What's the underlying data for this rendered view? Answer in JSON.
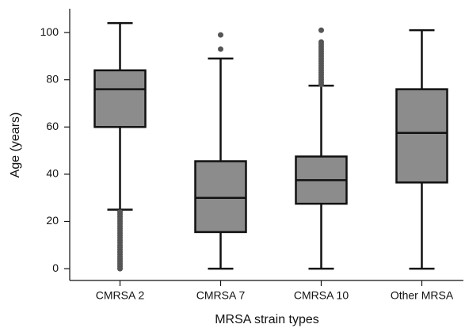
{
  "chart_data": {
    "type": "box",
    "x_label": "MRSA strain types",
    "y_label": "Age (years)",
    "categories": [
      "CMRSA 2",
      "CMRSA 7",
      "CMRSA 10",
      "Other MRSA"
    ],
    "color": "#8c8c8c",
    "boxes": [
      {
        "whislo": 25,
        "q1": 60,
        "med": 76,
        "q3": 84,
        "whishi": 104,
        "fliers": [
          0,
          1,
          2,
          3,
          4,
          5,
          6,
          7,
          8,
          9,
          10,
          11,
          12,
          13,
          14,
          15,
          16,
          17,
          18,
          19,
          20,
          21,
          22,
          23,
          24
        ]
      },
      {
        "whislo": 0,
        "q1": 15.5,
        "med": 30,
        "q3": 45.5,
        "whishi": 89,
        "fliers": [
          93,
          99
        ]
      },
      {
        "whislo": 0,
        "q1": 27.5,
        "med": 37.5,
        "q3": 47.5,
        "whishi": 77.5,
        "fliers": [
          78,
          79,
          80,
          81,
          82,
          83,
          84,
          85,
          86,
          87,
          88,
          89,
          90,
          91,
          92,
          93,
          94,
          95,
          96,
          101
        ]
      },
      {
        "whislo": 0,
        "q1": 36.5,
        "med": 57.5,
        "q3": 76,
        "whishi": 101,
        "fliers": []
      }
    ],
    "ylim": [
      -5,
      110
    ],
    "yticks": [
      0,
      20,
      40,
      60,
      80,
      100
    ]
  }
}
